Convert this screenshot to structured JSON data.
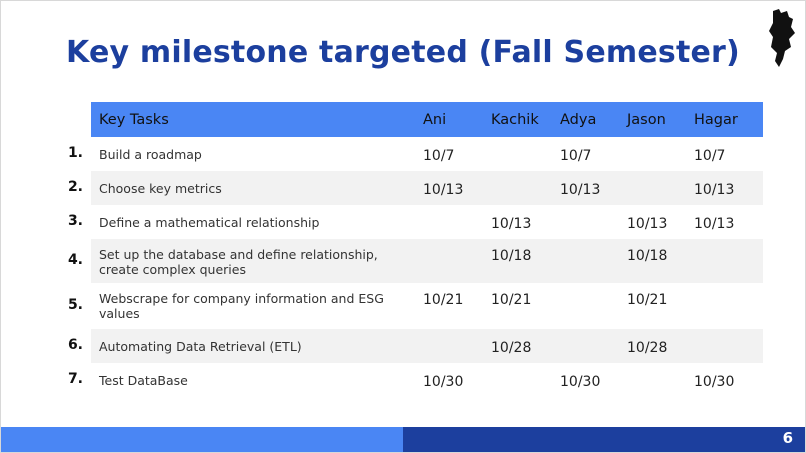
{
  "title": "Key milestone targeted (Fall Semester)",
  "table": {
    "header": [
      "Key Tasks",
      "Ani",
      "Kachik",
      "Adya",
      "Jason",
      "Hagar"
    ],
    "rows": [
      {
        "number": "1.",
        "task": "Build a roadmap",
        "dates": [
          "10/7",
          null,
          "10/7",
          null,
          "10/7"
        ]
      },
      {
        "number": "2.",
        "task": "Choose key metrics",
        "dates": [
          "10/13",
          null,
          "10/13",
          null,
          "10/13"
        ]
      },
      {
        "number": "3.",
        "task": "Define a mathematical relationship",
        "dates": [
          null,
          "10/13",
          null,
          "10/13",
          "10/13"
        ]
      },
      {
        "number": "4.",
        "task": "Set up the database and define relationship, create complex queries",
        "dates": [
          null,
          "10/18",
          null,
          "10/18",
          null
        ]
      },
      {
        "number": "5.",
        "task": "Webscrape for company information and ESG values",
        "dates": [
          "10/21",
          "10/21",
          null,
          "10/21",
          null
        ]
      },
      {
        "number": "6.",
        "task": "Automating Data Retrieval (ETL)",
        "dates": [
          null,
          "10/28",
          null,
          "10/28",
          null
        ]
      },
      {
        "number": "7.",
        "task": "Test DataBase",
        "dates": [
          "10/30",
          null,
          "10/30",
          null,
          "10/30"
        ]
      }
    ]
  },
  "page_number": "6"
}
